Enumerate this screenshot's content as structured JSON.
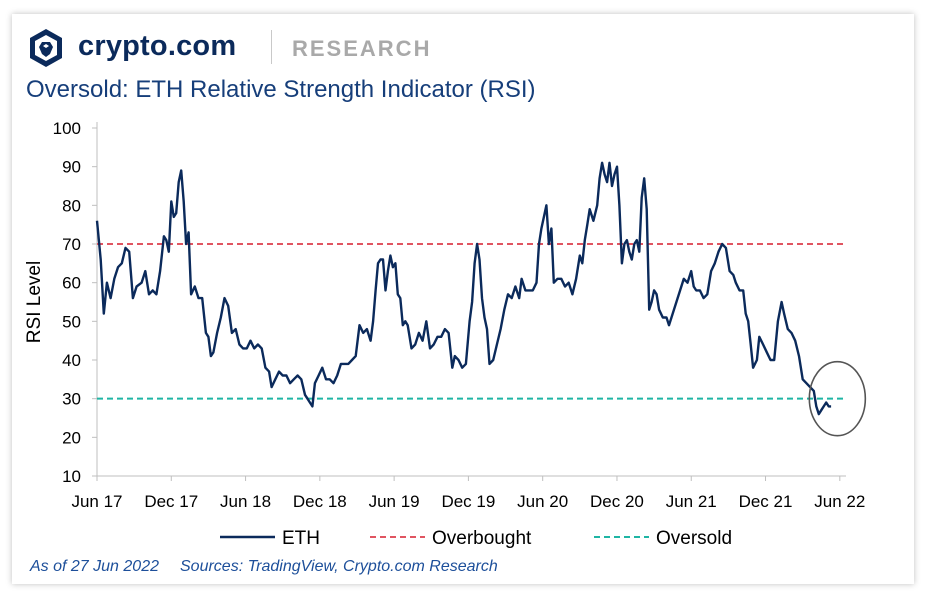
{
  "header": {
    "brand": "crypto.com",
    "section": "RESEARCH",
    "logo_icon": "crypto-com-lion-shield-icon"
  },
  "title": "Oversold: ETH Relative Strength Indicator (RSI)",
  "footer": {
    "as_of": "As of 27 Jun 2022",
    "sources": "Sources: TradingView, Crypto.com Research"
  },
  "colors": {
    "eth": "#0b2a5b",
    "overbought": "#e05561",
    "oversold": "#1fb5a4",
    "annotation": "#555555",
    "axis": "#bfbfbf"
  },
  "chart_data": {
    "type": "line",
    "ylabel": "RSI Level",
    "ylim": [
      10,
      100
    ],
    "yticks": [
      "10",
      "20",
      "30",
      "40",
      "50",
      "60",
      "70",
      "80",
      "90",
      "100"
    ],
    "xticks": [
      "Jun 17",
      "Dec 17",
      "Jun 18",
      "Dec 18",
      "Jun 19",
      "Dec 19",
      "Jun 20",
      "Dec 20",
      "Jun 21",
      "Dec 21",
      "Jun 22"
    ],
    "x_range_months": [
      0,
      60.5
    ],
    "legend": [
      "ETH",
      "Overbought",
      "Oversold"
    ],
    "legend_position": "bottom",
    "grid": false,
    "thresholds": [
      {
        "name": "Overbought",
        "value": 70,
        "style": "dashed"
      },
      {
        "name": "Oversold",
        "value": 30,
        "style": "dashed"
      }
    ],
    "annotation": {
      "type": "circle",
      "x": 59.8,
      "y": 30
    },
    "series": [
      {
        "name": "ETH",
        "points": [
          [
            0.0,
            76
          ],
          [
            0.3,
            66
          ],
          [
            0.55,
            52
          ],
          [
            0.8,
            60
          ],
          [
            1.1,
            56
          ],
          [
            1.4,
            61
          ],
          [
            1.7,
            64
          ],
          [
            2.0,
            65
          ],
          [
            2.3,
            69
          ],
          [
            2.6,
            68
          ],
          [
            2.9,
            56
          ],
          [
            3.2,
            59
          ],
          [
            3.6,
            60
          ],
          [
            3.9,
            63
          ],
          [
            4.2,
            57
          ],
          [
            4.5,
            58
          ],
          [
            4.8,
            57
          ],
          [
            5.1,
            63
          ],
          [
            5.4,
            72
          ],
          [
            5.6,
            71
          ],
          [
            5.8,
            68
          ],
          [
            6.0,
            81
          ],
          [
            6.2,
            77
          ],
          [
            6.4,
            78
          ],
          [
            6.6,
            86
          ],
          [
            6.8,
            89
          ],
          [
            7.0,
            81
          ],
          [
            7.2,
            70
          ],
          [
            7.4,
            73
          ],
          [
            7.6,
            57
          ],
          [
            7.9,
            59
          ],
          [
            8.2,
            56
          ],
          [
            8.5,
            56
          ],
          [
            8.8,
            47
          ],
          [
            9.0,
            46
          ],
          [
            9.2,
            41
          ],
          [
            9.4,
            42
          ],
          [
            9.7,
            47
          ],
          [
            10.0,
            51
          ],
          [
            10.3,
            56
          ],
          [
            10.6,
            54
          ],
          [
            10.9,
            47
          ],
          [
            11.2,
            48
          ],
          [
            11.5,
            44
          ],
          [
            11.8,
            43
          ],
          [
            12.1,
            43
          ],
          [
            12.4,
            45
          ],
          [
            12.7,
            43
          ],
          [
            13.0,
            44
          ],
          [
            13.3,
            43
          ],
          [
            13.6,
            38
          ],
          [
            13.9,
            37
          ],
          [
            14.1,
            33
          ],
          [
            14.4,
            35
          ],
          [
            14.7,
            37
          ],
          [
            15.0,
            36
          ],
          [
            15.3,
            36
          ],
          [
            15.6,
            34
          ],
          [
            15.9,
            35
          ],
          [
            16.2,
            36
          ],
          [
            16.5,
            35
          ],
          [
            16.8,
            31
          ],
          [
            17.0,
            30
          ],
          [
            17.2,
            29
          ],
          [
            17.4,
            28
          ],
          [
            17.6,
            34
          ],
          [
            17.9,
            36
          ],
          [
            18.2,
            38
          ],
          [
            18.5,
            35
          ],
          [
            18.8,
            35
          ],
          [
            19.1,
            34
          ],
          [
            19.4,
            36
          ],
          [
            19.7,
            39
          ],
          [
            20.0,
            39
          ],
          [
            20.3,
            39
          ],
          [
            20.6,
            40
          ],
          [
            20.9,
            41
          ],
          [
            21.2,
            49
          ],
          [
            21.5,
            47
          ],
          [
            21.8,
            48
          ],
          [
            22.1,
            45
          ],
          [
            22.3,
            50
          ],
          [
            22.5,
            58
          ],
          [
            22.7,
            65
          ],
          [
            22.9,
            66
          ],
          [
            23.1,
            66
          ],
          [
            23.3,
            58
          ],
          [
            23.5,
            63
          ],
          [
            23.7,
            67
          ],
          [
            23.9,
            64
          ],
          [
            24.1,
            65
          ],
          [
            24.3,
            57
          ],
          [
            24.5,
            56
          ],
          [
            24.7,
            49
          ],
          [
            24.9,
            50
          ],
          [
            25.1,
            49
          ],
          [
            25.4,
            43
          ],
          [
            25.7,
            44
          ],
          [
            26.0,
            47
          ],
          [
            26.3,
            45
          ],
          [
            26.6,
            50
          ],
          [
            26.9,
            43
          ],
          [
            27.2,
            44
          ],
          [
            27.5,
            46
          ],
          [
            27.8,
            46
          ],
          [
            28.1,
            48
          ],
          [
            28.4,
            47
          ],
          [
            28.7,
            38
          ],
          [
            28.9,
            41
          ],
          [
            29.2,
            40
          ],
          [
            29.5,
            38
          ],
          [
            29.8,
            39
          ],
          [
            30.1,
            50
          ],
          [
            30.3,
            55
          ],
          [
            30.5,
            65
          ],
          [
            30.7,
            70
          ],
          [
            30.9,
            66
          ],
          [
            31.1,
            56
          ],
          [
            31.3,
            51
          ],
          [
            31.5,
            48
          ],
          [
            31.7,
            39
          ],
          [
            32.0,
            40
          ],
          [
            32.3,
            44
          ],
          [
            32.6,
            48
          ],
          [
            32.9,
            53
          ],
          [
            33.2,
            57
          ],
          [
            33.5,
            56
          ],
          [
            33.8,
            59
          ],
          [
            34.1,
            56
          ],
          [
            34.3,
            61
          ],
          [
            34.6,
            58
          ],
          [
            34.9,
            58
          ],
          [
            35.2,
            58
          ],
          [
            35.5,
            60
          ],
          [
            35.7,
            70
          ],
          [
            35.9,
            74
          ],
          [
            36.1,
            77
          ],
          [
            36.3,
            80
          ],
          [
            36.5,
            70
          ],
          [
            36.7,
            74
          ],
          [
            36.9,
            60
          ],
          [
            37.2,
            61
          ],
          [
            37.5,
            61
          ],
          [
            37.8,
            59
          ],
          [
            38.1,
            60
          ],
          [
            38.4,
            57
          ],
          [
            38.7,
            61
          ],
          [
            39.0,
            67
          ],
          [
            39.2,
            65
          ],
          [
            39.4,
            71
          ],
          [
            39.6,
            75
          ],
          [
            39.8,
            79
          ],
          [
            40.1,
            76
          ],
          [
            40.4,
            80
          ],
          [
            40.6,
            87
          ],
          [
            40.8,
            91
          ],
          [
            41.0,
            88
          ],
          [
            41.2,
            86
          ],
          [
            41.4,
            91
          ],
          [
            41.6,
            85
          ],
          [
            41.8,
            88
          ],
          [
            42.0,
            90
          ],
          [
            42.2,
            80
          ],
          [
            42.4,
            65
          ],
          [
            42.6,
            70
          ],
          [
            42.8,
            71
          ],
          [
            43.0,
            68
          ],
          [
            43.2,
            66
          ],
          [
            43.4,
            70
          ],
          [
            43.6,
            71
          ],
          [
            43.8,
            68
          ],
          [
            44.0,
            82
          ],
          [
            44.2,
            87
          ],
          [
            44.4,
            79
          ],
          [
            44.6,
            53
          ],
          [
            44.8,
            55
          ],
          [
            45.0,
            58
          ],
          [
            45.2,
            57
          ],
          [
            45.4,
            53
          ],
          [
            45.7,
            51
          ],
          [
            46.0,
            51
          ],
          [
            46.2,
            49
          ],
          [
            46.5,
            52
          ],
          [
            46.8,
            55
          ],
          [
            47.1,
            58
          ],
          [
            47.4,
            61
          ],
          [
            47.7,
            60
          ],
          [
            48.0,
            63
          ],
          [
            48.2,
            59
          ],
          [
            48.4,
            58
          ],
          [
            48.7,
            58
          ],
          [
            49.0,
            56
          ],
          [
            49.3,
            57
          ],
          [
            49.6,
            63
          ],
          [
            49.9,
            65
          ],
          [
            50.2,
            68
          ],
          [
            50.5,
            70
          ],
          [
            50.8,
            69
          ],
          [
            51.1,
            63
          ],
          [
            51.4,
            62
          ],
          [
            51.6,
            60
          ],
          [
            51.9,
            58
          ],
          [
            52.2,
            58
          ],
          [
            52.4,
            52
          ],
          [
            52.6,
            50
          ],
          [
            52.8,
            44
          ],
          [
            53.0,
            38
          ],
          [
            53.3,
            40
          ],
          [
            53.5,
            46
          ],
          [
            53.8,
            44
          ],
          [
            54.1,
            42
          ],
          [
            54.4,
            40
          ],
          [
            54.7,
            40
          ],
          [
            55.0,
            50
          ],
          [
            55.3,
            55
          ],
          [
            55.5,
            52
          ],
          [
            55.8,
            48
          ],
          [
            56.1,
            47
          ],
          [
            56.4,
            45
          ],
          [
            56.7,
            41
          ],
          [
            57.0,
            35
          ],
          [
            57.3,
            34
          ],
          [
            57.6,
            33
          ],
          [
            57.9,
            32
          ],
          [
            58.1,
            28
          ],
          [
            58.3,
            26
          ],
          [
            58.5,
            27
          ],
          [
            58.7,
            28
          ],
          [
            58.9,
            29
          ],
          [
            59.1,
            28
          ],
          [
            59.3,
            28
          ]
        ]
      }
    ]
  }
}
